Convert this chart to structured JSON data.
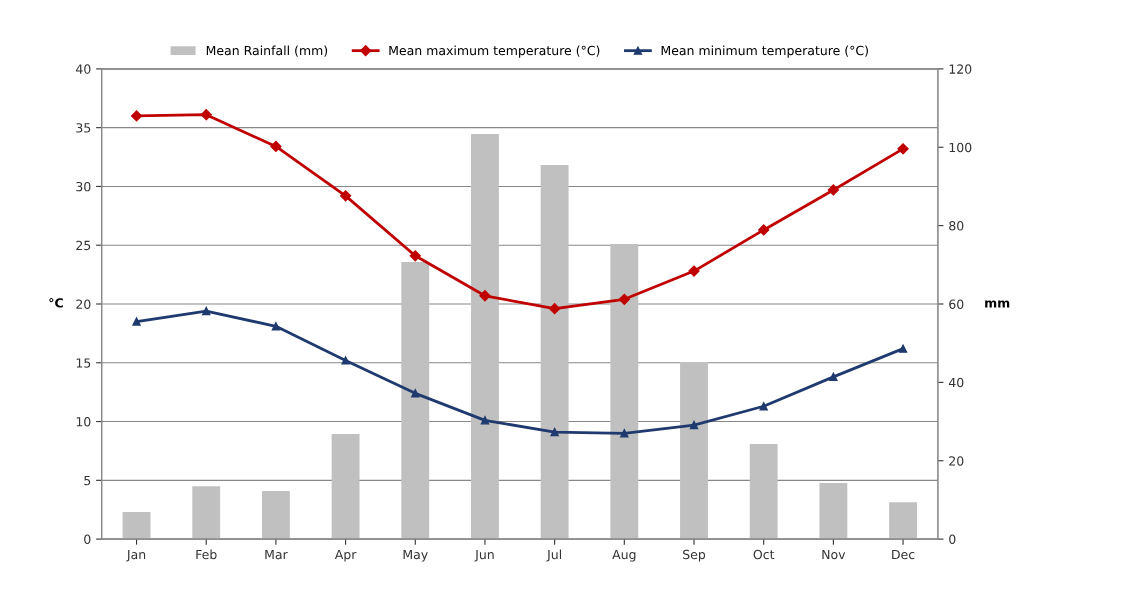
{
  "chart_data": {
    "type": "bar",
    "ylabel": "°C",
    "y2label": "mm",
    "categories": [
      "Jan",
      "Feb",
      "Mar",
      "Apr",
      "May",
      "Jun",
      "Jul",
      "Aug",
      "Sep",
      "Oct",
      "Nov",
      "Dec"
    ],
    "series": [
      {
        "name": "Mean Rainfall (mm)",
        "axis": "y2",
        "color": "#c0c0c0",
        "values": [
          6.9,
          13.5,
          12.3,
          26.8,
          70.7,
          103.4,
          95.5,
          75.3,
          45.2,
          24.3,
          14.3,
          9.4
        ]
      },
      {
        "name": "Mean maximum temperature (°C)",
        "type": "line",
        "color": "#c00000",
        "marker": "diamond",
        "values": [
          36.0,
          36.1,
          33.4,
          29.2,
          24.1,
          20.7,
          19.6,
          20.4,
          22.8,
          26.3,
          29.7,
          33.2
        ]
      },
      {
        "name": "Mean minimum temperature (°C)",
        "type": "line",
        "color": "#1f3a6e",
        "marker": "triangle",
        "values": [
          18.5,
          19.4,
          18.1,
          15.2,
          12.4,
          10.1,
          9.1,
          9.0,
          9.7,
          11.3,
          13.8,
          16.2
        ]
      }
    ],
    "ylim": [
      0,
      40
    ],
    "yticks": [
      0,
      5,
      10,
      15,
      20,
      25,
      30,
      35,
      40
    ],
    "y2lim": [
      0,
      120
    ],
    "y2ticks": [
      0,
      20,
      40,
      60,
      80,
      100,
      120
    ],
    "grid": "y",
    "legend": "top",
    "line_style": "solid"
  }
}
